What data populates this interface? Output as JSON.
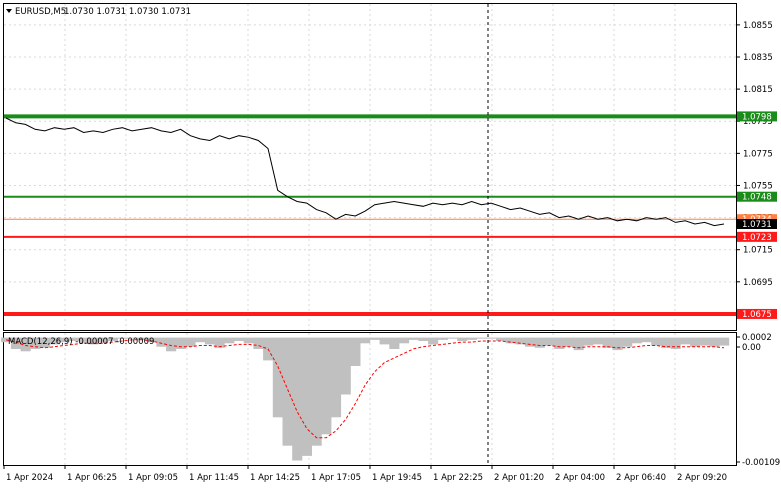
{
  "header": {
    "symbol_label": "EURUSD,M5",
    "ohlc": "1.0730 1.0731 1.0730 1.0731"
  },
  "colors": {
    "price_line": "#000000",
    "support_resistance_green": "#1a8c1a",
    "support_red": "#ff1a1a",
    "bid_line": "#ff8040",
    "macd_histogram": "#c0c0c0",
    "macd_signal": "#ff0000",
    "grid": "#d0d0d0",
    "crosshair": "#000000"
  },
  "chart_data": [
    {
      "type": "line",
      "title": "EURUSD,M5",
      "ylim": [
        1.0665,
        1.0868
      ],
      "y_ticks": [
        "1.0855",
        "1.0835",
        "1.0815",
        "1.0795",
        "1.0775",
        "1.0755",
        "1.0735",
        "1.0715",
        "1.0695"
      ],
      "x_ticks": [
        "1 Apr 2024",
        "1 Apr 06:25",
        "1 Apr 09:05",
        "1 Apr 11:45",
        "1 Apr 14:25",
        "1 Apr 17:05",
        "1 Apr 19:45",
        "1 Apr 22:25",
        "2 Apr 01:20",
        "2 Apr 04:00",
        "2 Apr 06:40",
        "2 Apr 09:20"
      ],
      "series": [
        {
          "values": [
            1.0797,
            1.0794,
            1.0793,
            1.079,
            1.0789,
            1.0791,
            1.079,
            1.0791,
            1.0788,
            1.0789,
            1.0788,
            1.079,
            1.0791,
            1.0789,
            1.079,
            1.0791,
            1.0789,
            1.0788,
            1.079,
            1.0786,
            1.0784,
            1.0783,
            1.0786,
            1.0784,
            1.0786,
            1.0785,
            1.0783,
            1.0778,
            1.0752,
            1.0748,
            1.0745,
            1.0744,
            1.074,
            1.0738,
            1.0734,
            1.0737,
            1.0736,
            1.0739,
            1.0743,
            1.0744,
            1.0745,
            1.0744,
            1.0743,
            1.0742,
            1.0744,
            1.0743,
            1.0744,
            1.0743,
            1.0745,
            1.0743,
            1.0744,
            1.0742,
            1.074,
            1.0741,
            1.0739,
            1.0737,
            1.0738,
            1.0735,
            1.0736,
            1.0734,
            1.0736,
            1.0734,
            1.0735,
            1.0733,
            1.0734,
            1.0733,
            1.0735,
            1.0734,
            1.0735,
            1.0732,
            1.0733,
            1.0731,
            1.0732,
            1.073,
            1.0731
          ]
        }
      ],
      "levels": [
        {
          "label": "1.0798",
          "value": 1.0798,
          "color": "#1a8c1a"
        },
        {
          "label": "1.0748",
          "value": 1.0748,
          "color": "#1a8c1a"
        },
        {
          "label": "1.0734",
          "value": 1.0734,
          "color": "#ff8040"
        },
        {
          "label": "1.0731",
          "value": 1.0731,
          "color": "#000000"
        },
        {
          "label": "1.0723",
          "value": 1.0723,
          "color": "#ff1a1a"
        },
        {
          "label": "1.0675",
          "value": 1.0675,
          "color": "#ff1a1a"
        }
      ]
    },
    {
      "type": "bar",
      "title": "MACD(12,26,9) -0.00007 -0.00009",
      "ylim": [
        -0.00112,
        4e-05
      ],
      "y_ticks": [
        "0.0002",
        "0.00",
        "-0.00109"
      ],
      "series": [
        {
          "name": "MACD",
          "values": [
            -4e-05,
            -0.0001,
            -0.00012,
            -0.0001,
            -9e-05,
            -6e-05,
            -4e-05,
            -3e-05,
            -5e-05,
            -6e-05,
            -4e-05,
            -3e-05,
            -1e-05,
            0.0,
            -2e-05,
            -4e-05,
            -8e-05,
            -0.00012,
            -0.0001,
            -8e-05,
            -4e-05,
            -6e-05,
            -9e-05,
            -5e-05,
            -3e-05,
            -5e-05,
            -0.0001,
            -0.0002,
            -0.0007,
            -0.00095,
            -0.00108,
            -0.00104,
            -0.00095,
            -0.00085,
            -0.0007,
            -0.0005,
            -0.00025,
            -5e-05,
            -2e-05,
            -6e-05,
            -0.0001,
            -5e-05,
            -2e-05,
            -3e-05,
            -6e-05,
            -2e-05,
            -1e-05,
            -3e-05,
            -2e-05,
            -1e-05,
            -1e-05,
            -3e-05,
            -5e-05,
            -6e-05,
            -8e-05,
            -9e-05,
            -7e-05,
            -0.0001,
            -8e-05,
            -0.00011,
            -7e-05,
            -6e-05,
            -9e-05,
            -0.00011,
            -8e-05,
            -5e-05,
            -4e-05,
            -7e-05,
            -9e-05,
            -0.0001,
            -6e-05,
            -8e-05,
            -7e-05,
            -8e-05,
            -7e-05
          ]
        },
        {
          "name": "Signal",
          "values": [
            -2e-05,
            -4e-05,
            -7e-05,
            -8e-05,
            -9e-05,
            -8e-05,
            -7e-05,
            -6e-05,
            -5e-05,
            -5e-05,
            -5e-05,
            -4e-05,
            -3e-05,
            -2e-05,
            -2e-05,
            -3e-05,
            -5e-05,
            -7e-05,
            -8e-05,
            -8e-05,
            -7e-05,
            -7e-05,
            -8e-05,
            -7e-05,
            -6e-05,
            -6e-05,
            -7e-05,
            -0.0001,
            -0.00025,
            -0.00045,
            -0.00065,
            -0.0008,
            -0.00088,
            -0.00088,
            -0.00082,
            -0.00072,
            -0.00058,
            -0.00042,
            -0.0003,
            -0.00022,
            -0.00018,
            -0.00014,
            -0.0001,
            -8e-05,
            -7e-05,
            -6e-05,
            -5e-05,
            -4e-05,
            -4e-05,
            -3e-05,
            -3e-05,
            -3e-05,
            -4e-05,
            -5e-05,
            -6e-05,
            -7e-05,
            -7e-05,
            -8e-05,
            -8e-05,
            -9e-05,
            -8e-05,
            -8e-05,
            -8e-05,
            -9e-05,
            -9e-05,
            -8e-05,
            -7e-05,
            -7e-05,
            -8e-05,
            -8e-05,
            -8e-05,
            -8e-05,
            -8e-05,
            -8e-05,
            -9e-05
          ]
        }
      ]
    }
  ]
}
